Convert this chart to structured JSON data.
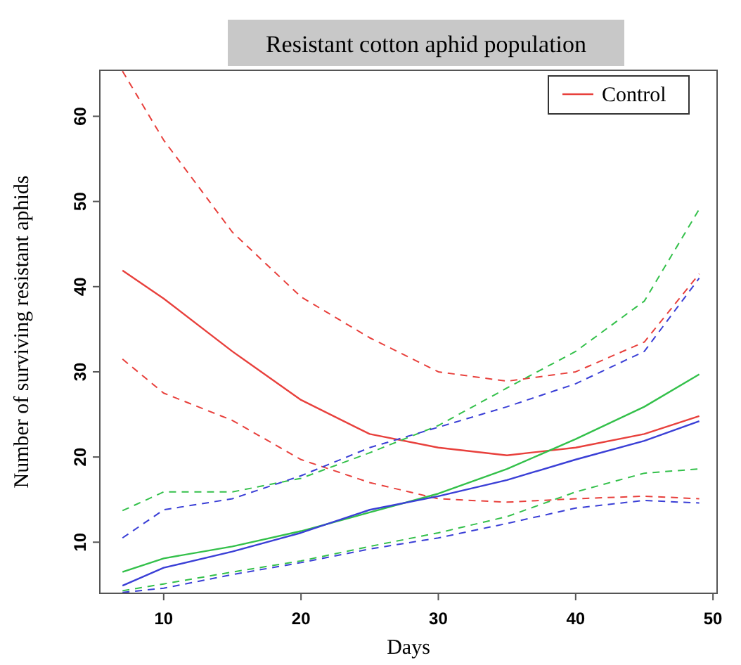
{
  "chart_data": {
    "type": "line",
    "title": "Resistant cotton aphid population",
    "xlabel": "Days",
    "ylabel": "Number of surviving resistant aphids",
    "x": [
      7,
      10,
      15,
      20,
      25,
      30,
      35,
      40,
      45,
      49
    ],
    "series": [
      {
        "name": "Control",
        "color": "#e8403c",
        "values": [
          41.9,
          38.6,
          32.4,
          26.7,
          22.7,
          21.1,
          20.2,
          21.1,
          22.7,
          24.8
        ]
      },
      {
        "color": "#e8403c",
        "line_style": "dashed",
        "values": [
          31.5,
          27.5,
          24.3,
          19.7,
          17.0,
          15.1,
          14.7,
          15.1,
          15.4,
          15.1
        ]
      },
      {
        "color": "#e8403c",
        "line_style": "dashed",
        "values": [
          65.3,
          57.2,
          46.4,
          38.8,
          34.0,
          30.0,
          28.9,
          30.0,
          33.5,
          41.5
        ]
      },
      {
        "color": "#33c04a",
        "values": [
          6.5,
          8.1,
          9.5,
          11.3,
          13.5,
          15.7,
          18.6,
          22.1,
          25.9,
          29.7
        ]
      },
      {
        "color": "#33c04a",
        "line_style": "dashed",
        "values": [
          4.3,
          5.1,
          6.5,
          7.8,
          9.5,
          11.1,
          13.0,
          15.9,
          18.1,
          18.6
        ]
      },
      {
        "color": "#33c04a",
        "line_style": "dashed",
        "values": [
          13.7,
          15.9,
          15.9,
          17.5,
          20.5,
          23.7,
          28.1,
          32.4,
          38.3,
          49.1
        ]
      },
      {
        "color": "#3a3fd6",
        "values": [
          4.9,
          7.0,
          8.9,
          11.1,
          13.8,
          15.4,
          17.3,
          19.7,
          21.9,
          24.2
        ]
      },
      {
        "color": "#3a3fd6",
        "line_style": "dashed",
        "values": [
          4.1,
          4.6,
          6.2,
          7.6,
          9.2,
          10.5,
          12.2,
          14.0,
          14.9,
          14.6
        ]
      },
      {
        "color": "#3a3fd6",
        "line_style": "dashed",
        "values": [
          10.5,
          13.8,
          15.1,
          17.8,
          21.1,
          23.5,
          25.9,
          28.6,
          32.4,
          41.0
        ]
      }
    ],
    "xlim": [
      5.35,
      50.3
    ],
    "xticks": [
      10,
      20,
      30,
      40,
      50
    ],
    "ylim": [
      4,
      65.4
    ],
    "yticks": [
      10,
      20,
      30,
      40,
      50,
      60
    ],
    "legend": "top right",
    "line_style": "solid",
    "grid": false
  }
}
